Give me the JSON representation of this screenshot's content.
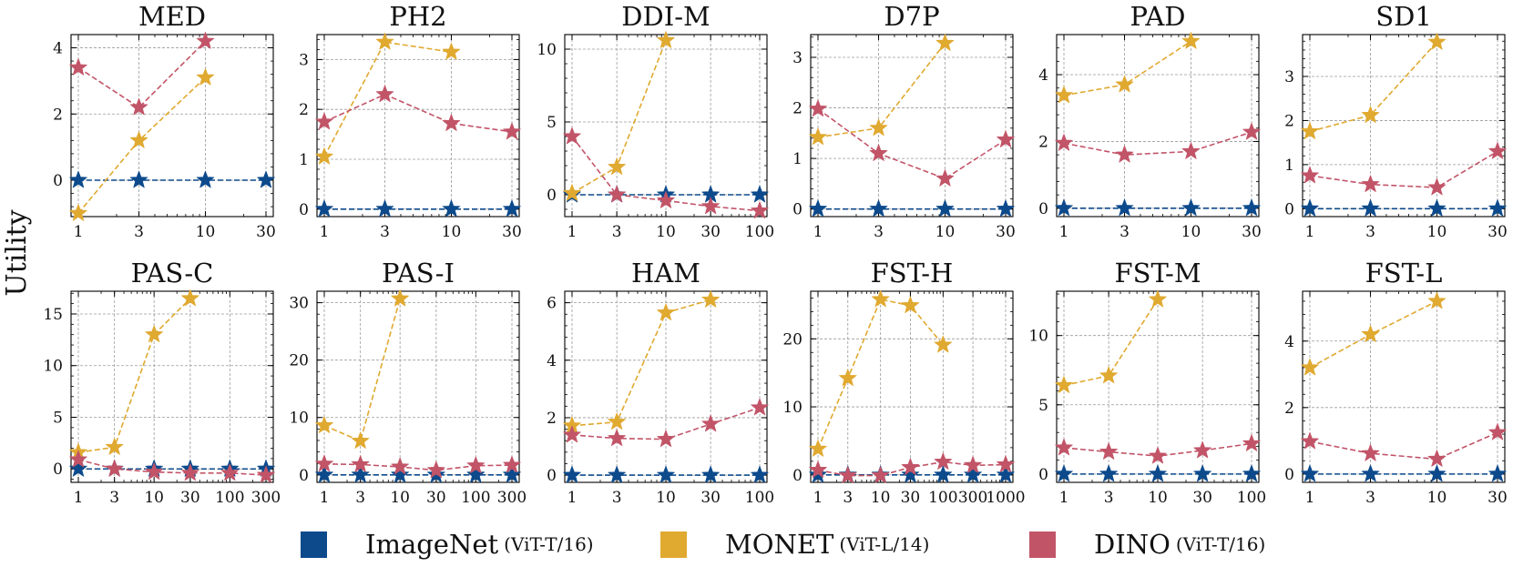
{
  "figure": {
    "ylabel": "Utility"
  },
  "colors": {
    "imagenet": "#0c4a8c",
    "monet": "#e0a930",
    "dino": "#c25468"
  },
  "legend": [
    {
      "key": "imagenet",
      "name": "ImageNet",
      "sub": "(ViT-T/16)"
    },
    {
      "key": "monet",
      "name": "MONET",
      "sub": "(ViT-L/14)"
    },
    {
      "key": "dino",
      "name": "DINO",
      "sub": "(ViT-T/16)"
    }
  ],
  "chart_data": [
    {
      "type": "line",
      "title": "MED",
      "x": [
        1,
        3,
        10,
        30
      ],
      "xticks": [
        "1",
        "3",
        "10",
        "30"
      ],
      "ylim": [
        -1.1,
        4.4
      ],
      "yticks": [
        0,
        2,
        4
      ],
      "series": [
        {
          "name": "ImageNet (ViT-T/16)",
          "key": "imagenet",
          "values": [
            0,
            0,
            0,
            0
          ]
        },
        {
          "name": "MONET (ViT-L/14)",
          "key": "monet",
          "values": [
            -1.0,
            1.2,
            3.1,
            null
          ]
        },
        {
          "name": "DINO (ViT-T/16)",
          "key": "dino",
          "values": [
            3.4,
            2.2,
            4.2,
            null
          ]
        }
      ]
    },
    {
      "type": "line",
      "title": "PH2",
      "x": [
        1,
        3,
        10,
        30
      ],
      "xticks": [
        "1",
        "3",
        "10",
        "30"
      ],
      "ylim": [
        -0.15,
        3.5
      ],
      "yticks": [
        0,
        1,
        2,
        3
      ],
      "series": [
        {
          "name": "ImageNet (ViT-T/16)",
          "key": "imagenet",
          "values": [
            0,
            0,
            0,
            0
          ]
        },
        {
          "name": "MONET (ViT-L/14)",
          "key": "monet",
          "values": [
            1.05,
            3.35,
            3.15,
            null
          ]
        },
        {
          "name": "DINO (ViT-T/16)",
          "key": "dino",
          "values": [
            1.75,
            2.3,
            1.72,
            1.55
          ]
        }
      ]
    },
    {
      "type": "line",
      "title": "DDI-M",
      "x": [
        1,
        3,
        10,
        30,
        100
      ],
      "xticks": [
        "1",
        "3",
        "10",
        "30",
        "100"
      ],
      "ylim": [
        -1.5,
        11.0
      ],
      "yticks": [
        0,
        5,
        10
      ],
      "series": [
        {
          "name": "ImageNet (ViT-T/16)",
          "key": "imagenet",
          "values": [
            0,
            0,
            0,
            0,
            0
          ]
        },
        {
          "name": "MONET (ViT-L/14)",
          "key": "monet",
          "values": [
            0.1,
            1.9,
            10.6,
            null,
            null
          ]
        },
        {
          "name": "DINO (ViT-T/16)",
          "key": "dino",
          "values": [
            4.0,
            0.0,
            -0.4,
            -0.8,
            -1.1
          ]
        }
      ]
    },
    {
      "type": "line",
      "title": "D7P",
      "x": [
        1,
        3,
        10,
        30
      ],
      "xticks": [
        "1",
        "3",
        "10",
        "30"
      ],
      "ylim": [
        -0.15,
        3.45
      ],
      "yticks": [
        0,
        1,
        2,
        3
      ],
      "series": [
        {
          "name": "ImageNet (ViT-T/16)",
          "key": "imagenet",
          "values": [
            0,
            0,
            0,
            0
          ]
        },
        {
          "name": "MONET (ViT-L/14)",
          "key": "monet",
          "values": [
            1.42,
            1.6,
            3.28,
            null
          ]
        },
        {
          "name": "DINO (ViT-T/16)",
          "key": "dino",
          "values": [
            1.98,
            1.1,
            0.6,
            1.37
          ]
        }
      ]
    },
    {
      "type": "line",
      "title": "PAD",
      "x": [
        1,
        3,
        10,
        30
      ],
      "xticks": [
        "1",
        "3",
        "10",
        "30"
      ],
      "ylim": [
        -0.25,
        5.2
      ],
      "yticks": [
        0,
        2,
        4
      ],
      "series": [
        {
          "name": "ImageNet (ViT-T/16)",
          "key": "imagenet",
          "values": [
            0,
            0,
            0,
            0
          ]
        },
        {
          "name": "MONET (ViT-L/14)",
          "key": "monet",
          "values": [
            3.38,
            3.7,
            5.0,
            null
          ]
        },
        {
          "name": "DINO (ViT-T/16)",
          "key": "dino",
          "values": [
            1.95,
            1.6,
            1.7,
            2.28
          ]
        }
      ]
    },
    {
      "type": "line",
      "title": "SD1",
      "x": [
        1,
        3,
        10,
        30
      ],
      "xticks": [
        "1",
        "3",
        "10",
        "30"
      ],
      "ylim": [
        -0.18,
        3.95
      ],
      "yticks": [
        0,
        1,
        2,
        3
      ],
      "series": [
        {
          "name": "ImageNet (ViT-T/16)",
          "key": "imagenet",
          "values": [
            0,
            0,
            0,
            0
          ]
        },
        {
          "name": "MONET (ViT-L/14)",
          "key": "monet",
          "values": [
            1.75,
            2.12,
            3.78,
            null
          ]
        },
        {
          "name": "DINO (ViT-T/16)",
          "key": "dino",
          "values": [
            0.75,
            0.55,
            0.48,
            1.3
          ]
        }
      ]
    },
    {
      "type": "line",
      "title": "PAS-C",
      "x": [
        1,
        3,
        10,
        30,
        100,
        300
      ],
      "xticks": [
        "1",
        "3",
        "10",
        "30",
        "100",
        "300"
      ],
      "ylim": [
        -1.3,
        17.2
      ],
      "yticks": [
        0,
        5,
        10,
        15
      ],
      "series": [
        {
          "name": "ImageNet (ViT-T/16)",
          "key": "imagenet",
          "values": [
            0,
            0,
            0,
            0,
            0,
            0
          ]
        },
        {
          "name": "MONET (ViT-L/14)",
          "key": "monet",
          "values": [
            1.6,
            2.1,
            13.0,
            16.5,
            null,
            null
          ]
        },
        {
          "name": "DINO (ViT-T/16)",
          "key": "dino",
          "values": [
            0.9,
            0.0,
            -0.3,
            -0.4,
            -0.4,
            -0.6
          ]
        }
      ]
    },
    {
      "type": "line",
      "title": "PAS-I",
      "x": [
        1,
        3,
        10,
        30,
        100,
        300
      ],
      "xticks": [
        "1",
        "3",
        "10",
        "30",
        "100",
        "300"
      ],
      "ylim": [
        -1.3,
        32.0
      ],
      "yticks": [
        0,
        10,
        20,
        30
      ],
      "series": [
        {
          "name": "ImageNet (ViT-T/16)",
          "key": "imagenet",
          "values": [
            0,
            0,
            0,
            0,
            0,
            0
          ]
        },
        {
          "name": "MONET (ViT-L/14)",
          "key": "monet",
          "values": [
            8.6,
            5.9,
            30.7,
            null,
            null,
            null
          ]
        },
        {
          "name": "DINO (ViT-T/16)",
          "key": "dino",
          "values": [
            1.9,
            1.8,
            1.4,
            0.8,
            1.6,
            1.7
          ]
        }
      ]
    },
    {
      "type": "line",
      "title": "HAM",
      "x": [
        1,
        3,
        10,
        30,
        100
      ],
      "xticks": [
        "1",
        "3",
        "10",
        "30",
        "100"
      ],
      "ylim": [
        -0.25,
        6.4
      ],
      "yticks": [
        0,
        2,
        4,
        6
      ],
      "series": [
        {
          "name": "ImageNet (ViT-T/16)",
          "key": "imagenet",
          "values": [
            0,
            0,
            0,
            0,
            0
          ]
        },
        {
          "name": "MONET (ViT-L/14)",
          "key": "monet",
          "values": [
            1.72,
            1.85,
            5.65,
            6.1,
            null
          ]
        },
        {
          "name": "DINO (ViT-T/16)",
          "key": "dino",
          "values": [
            1.4,
            1.28,
            1.25,
            1.78,
            2.35
          ]
        }
      ]
    },
    {
      "type": "line",
      "title": "FST-H",
      "x": [
        1,
        3,
        10,
        30,
        100,
        300,
        1000
      ],
      "xticks": [
        "1",
        "3",
        "10",
        "30",
        "100",
        "300",
        "1000"
      ],
      "ylim": [
        -1.1,
        27.0
      ],
      "yticks": [
        0,
        10,
        20
      ],
      "series": [
        {
          "name": "ImageNet (ViT-T/16)",
          "key": "imagenet",
          "values": [
            0,
            0,
            0,
            0,
            0,
            0,
            0
          ]
        },
        {
          "name": "MONET (ViT-L/14)",
          "key": "monet",
          "values": [
            3.8,
            14.2,
            25.8,
            24.9,
            19.1,
            null,
            null
          ]
        },
        {
          "name": "DINO (ViT-T/16)",
          "key": "dino",
          "values": [
            0.7,
            -0.1,
            -0.1,
            1.1,
            1.9,
            1.4,
            1.5
          ]
        }
      ]
    },
    {
      "type": "line",
      "title": "FST-M",
      "x": [
        1,
        3,
        10,
        30,
        100
      ],
      "xticks": [
        "1",
        "3",
        "10",
        "30",
        "100"
      ],
      "ylim": [
        -0.6,
        13.2
      ],
      "yticks": [
        0,
        5,
        10
      ],
      "series": [
        {
          "name": "ImageNet (ViT-T/16)",
          "key": "imagenet",
          "values": [
            0,
            0,
            0,
            0,
            0
          ]
        },
        {
          "name": "MONET (ViT-L/14)",
          "key": "monet",
          "values": [
            6.4,
            7.1,
            12.6,
            null,
            null
          ]
        },
        {
          "name": "DINO (ViT-T/16)",
          "key": "dino",
          "values": [
            1.9,
            1.6,
            1.3,
            1.7,
            2.2
          ]
        }
      ]
    },
    {
      "type": "line",
      "title": "FST-L",
      "x": [
        1,
        3,
        10,
        30
      ],
      "xticks": [
        "1",
        "3",
        "10",
        "30"
      ],
      "ylim": [
        -0.25,
        5.5
      ],
      "yticks": [
        0,
        2,
        4
      ],
      "series": [
        {
          "name": "ImageNet (ViT-T/16)",
          "key": "imagenet",
          "values": [
            0,
            0,
            0,
            0
          ]
        },
        {
          "name": "MONET (ViT-L/14)",
          "key": "monet",
          "values": [
            3.2,
            4.2,
            5.2,
            null
          ]
        },
        {
          "name": "DINO (ViT-T/16)",
          "key": "dino",
          "values": [
            0.98,
            0.62,
            0.45,
            1.25
          ]
        }
      ]
    }
  ]
}
